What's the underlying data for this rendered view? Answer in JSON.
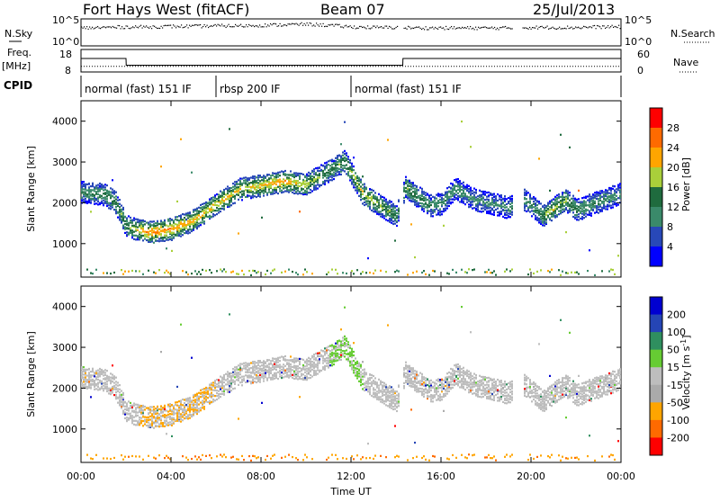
{
  "header": {
    "station": "Fort Hays West (fitACF)",
    "beam": "Beam 07",
    "date": "25/Jul/2013"
  },
  "strip_labels": {
    "nsky": "N.Sky",
    "nsky_ticks": [
      "10^5",
      "10^0"
    ],
    "nsearch": "N.Search",
    "nsearch_ticks": [
      "10^5",
      "10^0"
    ],
    "freq": "Freq.",
    "freq_unit": "[MHz]",
    "freq_ticks": [
      "18",
      "8"
    ],
    "nave": "Nave",
    "nave_ticks": [
      "60",
      "0"
    ],
    "cpid": "CPID"
  },
  "cpid_segments": [
    {
      "label": "normal (fast) 151 IF",
      "start_h": 0,
      "end_h": 6
    },
    {
      "label": "rbsp 200 IF",
      "start_h": 6,
      "end_h": 12
    },
    {
      "label": "normal (fast) 151 IF",
      "start_h": 12,
      "end_h": 24
    }
  ],
  "time_axis": {
    "label": "Time UT",
    "ticks": [
      "00:00",
      "04:00",
      "08:00",
      "12:00",
      "16:00",
      "20:00",
      "00:00"
    ]
  },
  "colors": {
    "power": [
      "#0000ff",
      "#2848b8",
      "#3a8a6a",
      "#1f6b3e",
      "#a9cf3a",
      "#ffa500",
      "#ff6a00",
      "#ff0000"
    ],
    "velocity": [
      "#ff0000",
      "#ff6a00",
      "#ffa500",
      "#aaaaaa",
      "#bdbdbd",
      "#66cc33",
      "#2f8f5f",
      "#2545b5",
      "#0000d0"
    ],
    "ground_scatter": "#bdbdbd"
  },
  "chart_data": [
    {
      "type": "heatmap",
      "name": "power",
      "ylabel": "Slant Range [km]",
      "y_ticks": [
        "1000",
        "2000",
        "3000",
        "4000"
      ],
      "ylim": [
        180,
        4500
      ],
      "xlim_hours": [
        0,
        24
      ],
      "colorbar_label": "Power [dB]",
      "colorbar_ticks": [
        "28",
        "24",
        "20",
        "16",
        "12",
        "8",
        "4"
      ],
      "colorbar_range": [
        0,
        32
      ],
      "data_gaps_hours": [
        [
          14.1,
          14.3
        ],
        [
          19.2,
          19.6
        ]
      ],
      "band_center_km": [
        [
          0,
          2280
        ],
        [
          1,
          2230
        ],
        [
          1.5,
          2050
        ],
        [
          2,
          1450
        ],
        [
          3,
          1300
        ],
        [
          4,
          1380
        ],
        [
          5,
          1600
        ],
        [
          6,
          2000
        ],
        [
          7,
          2350
        ],
        [
          8,
          2450
        ],
        [
          9,
          2550
        ],
        [
          10,
          2480
        ],
        [
          11,
          2800
        ],
        [
          11.7,
          3050
        ],
        [
          12.5,
          2250
        ],
        [
          13,
          2050
        ],
        [
          14,
          1700
        ],
        [
          14.4,
          2400
        ],
        [
          15.5,
          1950
        ],
        [
          16,
          2000
        ],
        [
          16.6,
          2380
        ],
        [
          17,
          2250
        ],
        [
          17.5,
          2100
        ],
        [
          19,
          1900
        ],
        [
          19.7,
          2100
        ],
        [
          20.5,
          1700
        ],
        [
          21.5,
          2100
        ],
        [
          22,
          1850
        ],
        [
          23.5,
          2150
        ],
        [
          24,
          2250
        ]
      ],
      "band_power_db": [
        [
          0,
          12
        ],
        [
          2,
          16
        ],
        [
          3,
          26
        ],
        [
          5,
          22
        ],
        [
          7,
          20
        ],
        [
          9,
          24
        ],
        [
          11,
          14
        ],
        [
          12.5,
          20
        ],
        [
          14,
          14
        ],
        [
          14.4,
          16
        ],
        [
          16,
          12
        ],
        [
          18,
          10
        ],
        [
          20,
          12
        ],
        [
          21,
          20
        ],
        [
          22,
          14
        ],
        [
          24,
          10
        ]
      ]
    },
    {
      "type": "heatmap",
      "name": "velocity",
      "ylabel": "Slant Range [km]",
      "y_ticks": [
        "1000",
        "2000",
        "3000",
        "4000"
      ],
      "ylim": [
        180,
        4500
      ],
      "xlim_hours": [
        0,
        24
      ],
      "colorbar_label": "Velocity [m s^-1]",
      "colorbar_ticks": [
        "200",
        "100",
        "50",
        "15",
        "-15",
        "-50",
        "-100",
        "-200"
      ],
      "colorbar_range": [
        -250,
        250
      ],
      "ground_scatter": "gray",
      "band_center_km": [
        [
          0,
          2280
        ],
        [
          1,
          2230
        ],
        [
          1.5,
          2050
        ],
        [
          2,
          1450
        ],
        [
          3,
          1300
        ],
        [
          4,
          1380
        ],
        [
          5,
          1600
        ],
        [
          6,
          2000
        ],
        [
          7,
          2350
        ],
        [
          8,
          2450
        ],
        [
          9,
          2550
        ],
        [
          10,
          2480
        ],
        [
          11,
          2800
        ],
        [
          11.7,
          3050
        ],
        [
          12.5,
          2250
        ],
        [
          13,
          2050
        ],
        [
          14,
          1700
        ],
        [
          14.4,
          2400
        ],
        [
          15.5,
          1950
        ],
        [
          16,
          2000
        ],
        [
          16.6,
          2380
        ],
        [
          17,
          2250
        ],
        [
          17.5,
          2100
        ],
        [
          19,
          1900
        ],
        [
          19.7,
          2100
        ],
        [
          20.5,
          1700
        ],
        [
          21.5,
          2100
        ],
        [
          22,
          1850
        ],
        [
          23.5,
          2150
        ],
        [
          24,
          2250
        ]
      ]
    },
    {
      "type": "line",
      "name": "nsky",
      "x_hours": [
        0,
        1,
        2,
        3,
        4,
        5,
        6,
        7,
        8,
        9,
        10,
        11,
        12,
        13,
        14,
        15,
        16,
        17,
        18,
        19,
        20,
        21,
        22,
        23,
        24
      ],
      "values_log10": [
        3.4,
        3.5,
        3.6,
        3.6,
        3.7,
        3.7,
        3.8,
        3.8,
        3.9,
        4.0,
        4.1,
        3.9,
        3.6,
        3.5,
        3.5,
        3.4,
        3.4,
        3.4,
        3.4,
        3.4,
        3.5,
        3.5,
        3.5,
        3.6,
        3.6
      ],
      "ylim_log10": [
        0,
        5
      ]
    },
    {
      "type": "line",
      "name": "frequency",
      "x_hours": [
        0,
        2,
        2.01,
        14.1,
        14.3,
        14.31,
        19.2,
        19.6,
        24
      ],
      "values": [
        14,
        14,
        11,
        11,
        11,
        14,
        14,
        14,
        14
      ],
      "ylim": [
        8,
        18
      ]
    },
    {
      "type": "line",
      "name": "nave",
      "x_hours": [
        0,
        24
      ],
      "values": [
        15,
        15
      ],
      "ylim": [
        0,
        60
      ]
    }
  ]
}
